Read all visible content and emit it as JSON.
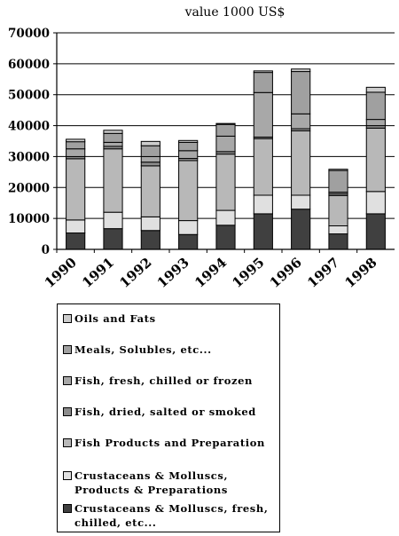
{
  "chart_data": {
    "type": "bar",
    "stacked": true,
    "title": "value 1000 US$",
    "categories": [
      "1990",
      "1991",
      "1992",
      "1993",
      "1994",
      "1995",
      "1996",
      "1997",
      "1998"
    ],
    "ylim": [
      0,
      70000
    ],
    "yticks": [
      "0",
      "10000",
      "20000",
      "30000",
      "40000",
      "50000",
      "60000",
      "70000"
    ],
    "grid": true,
    "legend_position": "bottom",
    "series": [
      {
        "name": "Crustaceans & Molluscs, fresh, chilled, etc...",
        "color": "#404040",
        "values": [
          5300,
          6700,
          6100,
          4800,
          7800,
          11500,
          13000,
          5000,
          11500
        ]
      },
      {
        "name": "Crustaceans & Molluscs, Products & Preparations",
        "color": "#e0e0e0",
        "values": [
          4200,
          5300,
          4400,
          4500,
          4800,
          6000,
          4500,
          2600,
          7200
        ]
      },
      {
        "name": "Fish Products and Preparation",
        "color": "#b8b8b8",
        "values": [
          19800,
          20500,
          16500,
          19400,
          18200,
          18300,
          20800,
          9800,
          20500
        ]
      },
      {
        "name": "Fish, dried, salted or smoked",
        "color": "#8c8c8c",
        "values": [
          700,
          800,
          1200,
          700,
          800,
          500,
          700,
          600,
          800
        ]
      },
      {
        "name": "Fish, fresh, chilled or frozen",
        "color": "#a8a8a8",
        "values": [
          2500,
          1300,
          1800,
          2500,
          5000,
          14400,
          4800,
          500,
          2000
        ]
      },
      {
        "name": "Meals, Solubles, etc...",
        "color": "#a0a0a0",
        "values": [
          2300,
          2900,
          3500,
          2700,
          3800,
          6500,
          13700,
          7000,
          8800
        ]
      },
      {
        "name": "Oils and Fats",
        "color": "#cccccc",
        "values": [
          800,
          1000,
          1400,
          600,
          300,
          500,
          800,
          400,
          1600
        ]
      }
    ]
  },
  "legend": [
    {
      "label": "Oils and Fats",
      "color": "#cccccc"
    },
    {
      "label": "Meals, Solubles, etc...",
      "color": "#a0a0a0"
    },
    {
      "label": "Fish, fresh, chilled or frozen",
      "color": "#a8a8a8"
    },
    {
      "label": "Fish, dried, salted or smoked",
      "color": "#8c8c8c"
    },
    {
      "label": "Fish Products and Preparation",
      "color": "#b8b8b8"
    },
    {
      "label": "Crustaceans & Molluscs, Products & Preparations",
      "color": "#e0e0e0"
    },
    {
      "label": "Crustaceans & Molluscs, fresh, chilled, etc...",
      "color": "#404040"
    }
  ]
}
